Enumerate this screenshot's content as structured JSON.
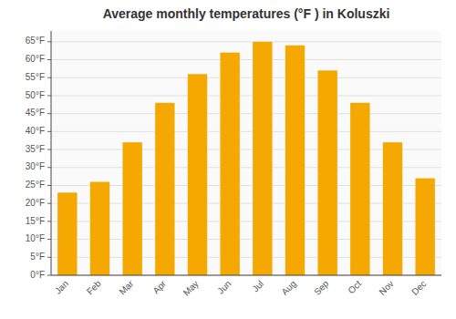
{
  "chart_data": {
    "type": "bar",
    "title": "Average monthly temperatures (°F ) in Koluszki",
    "categories": [
      "Jan",
      "Feb",
      "Mar",
      "Apr",
      "May",
      "Jun",
      "Jul",
      "Aug",
      "Sep",
      "Oct",
      "Nov",
      "Dec"
    ],
    "values": [
      23,
      26,
      37,
      48,
      56,
      62,
      65,
      64,
      57,
      48,
      37,
      27
    ],
    "color": "#F5A800",
    "ylim": [
      0,
      68
    ],
    "yticks": [
      {
        "value": 0,
        "label": "0°F"
      },
      {
        "value": 5,
        "label": "5°F"
      },
      {
        "value": 10,
        "label": "10°F"
      },
      {
        "value": 15,
        "label": "15°F"
      },
      {
        "value": 20,
        "label": "20°F"
      },
      {
        "value": 25,
        "label": "25°F"
      },
      {
        "value": 30,
        "label": "30°F"
      },
      {
        "value": 35,
        "label": "35°F"
      },
      {
        "value": 40,
        "label": "40°F"
      },
      {
        "value": 45,
        "label": "45°F"
      },
      {
        "value": 50,
        "label": "50°F"
      },
      {
        "value": 55,
        "label": "55°F"
      },
      {
        "value": 60,
        "label": "60°F"
      },
      {
        "value": 65,
        "label": "65°F"
      }
    ],
    "grid": true
  }
}
